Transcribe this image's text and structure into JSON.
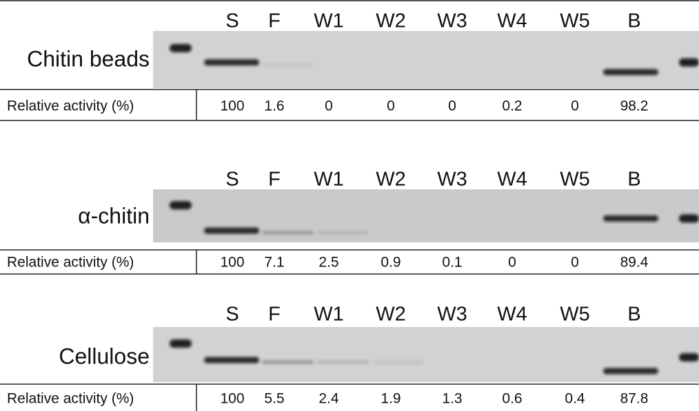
{
  "panels": [
    {
      "label": "Chitin beads",
      "lanes": [
        "S",
        "F",
        "W1",
        "W2",
        "W3",
        "W4",
        "W5",
        "B"
      ],
      "row_label": "Relative activity (%)",
      "values": [
        100,
        1.6,
        0,
        0,
        0,
        0.2,
        0,
        98.2
      ]
    },
    {
      "label": "α-chitin",
      "lanes": [
        "S",
        "F",
        "W1",
        "W2",
        "W3",
        "W4",
        "W5",
        "B"
      ],
      "row_label": "Relative activity (%)",
      "values": [
        100,
        7.1,
        2.5,
        0.9,
        0.1,
        0,
        0,
        89.4
      ]
    },
    {
      "label": "Cellulose",
      "lanes": [
        "S",
        "F",
        "W1",
        "W2",
        "W3",
        "W4",
        "W5",
        "B"
      ],
      "row_label": "Relative activity (%)",
      "values": [
        100,
        5.5,
        2.4,
        1.9,
        1.3,
        0.6,
        0.4,
        87.8
      ]
    }
  ]
}
